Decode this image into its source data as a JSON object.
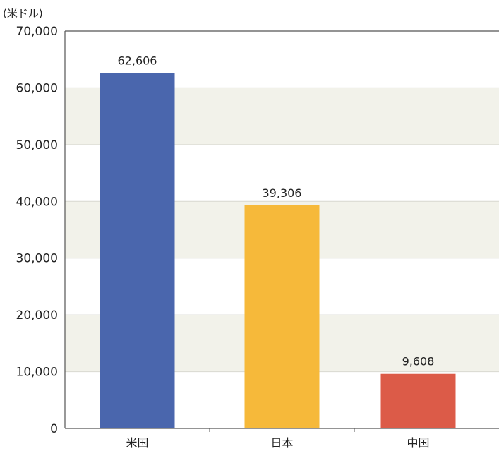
{
  "chart_data": {
    "type": "bar",
    "unit": "(米ドル)",
    "categories": [
      "米国",
      "日本",
      "中国"
    ],
    "values": [
      62606,
      39306,
      9608
    ],
    "value_labels": [
      "62,606",
      "39,306",
      "9,608"
    ],
    "ylim": [
      0,
      70000
    ],
    "yticks": [
      0,
      10000,
      20000,
      30000,
      40000,
      50000,
      60000,
      70000
    ],
    "ytick_labels": [
      "0",
      "10,000",
      "20,000",
      "30,000",
      "40,000",
      "50,000",
      "60,000",
      "70,000"
    ],
    "grid": true,
    "colors": {
      "bars": [
        "#4a66ad",
        "#f6b93a",
        "#dc5b48"
      ],
      "band": "#f2f2ea",
      "gridline": "#d8d8d0",
      "axis": "#555555"
    }
  }
}
